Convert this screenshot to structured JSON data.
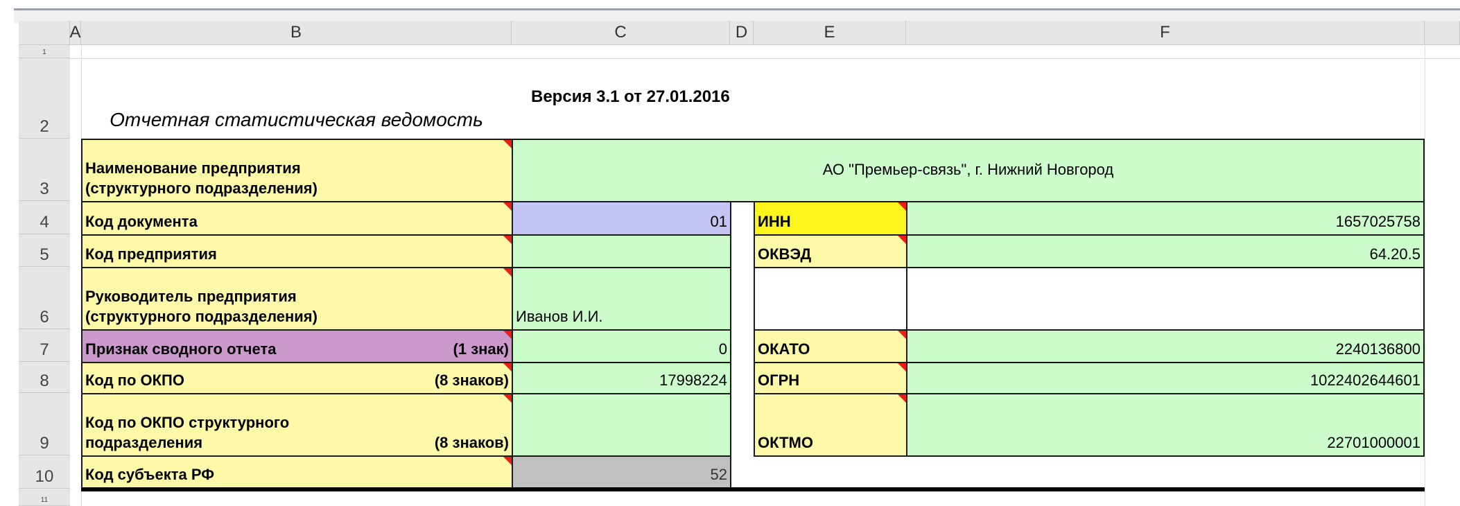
{
  "columns": [
    "A",
    "B",
    "C",
    "D",
    "E",
    "F"
  ],
  "rows": [
    "1",
    "2",
    "3",
    "4",
    "5",
    "6",
    "7",
    "8",
    "9",
    "10",
    "11"
  ],
  "title": "Отчетная  статистическая ведомость",
  "version": "Версия 3.1 от 27.01.2016",
  "fields": {
    "name_label": "Наименование предприятия (структурного подразделения)",
    "name_value": "АО \"Премьер-связь\", г. Нижний Новгород",
    "doc_code_label": "Код документа",
    "doc_code_value": "01",
    "ent_code_label": "Код предприятия",
    "ent_code_value": "",
    "head_label": "Руководитель предприятия (структурного подразделения)",
    "head_value": "Иванов И.И.",
    "summary_label": "Признак сводного отчета",
    "summary_hint": "(1 знак)",
    "summary_value": "0",
    "okpo_label": "Код по ОКПО",
    "okpo_hint": "(8 знаков)",
    "okpo_value": "17998224",
    "okpo_sub_label1": "Код по ОКПО  структурного",
    "okpo_sub_label2": "подразделения",
    "okpo_sub_hint": "(8 знаков)",
    "okpo_sub_value": "",
    "region_label": "Код субъекта РФ",
    "region_value": "52",
    "inn_label": "ИНН",
    "inn_value": "1657025758",
    "okved_label": "ОКВЭД",
    "okved_value": "64.20.5",
    "okato_label": "ОКАТО",
    "okato_value": "2240136800",
    "ogrn_label": "ОГРН",
    "ogrn_value": "1022402644601",
    "oktmo_label": "ОКТМО",
    "oktmo_value": "22701000001"
  },
  "colors": {
    "label": "#fdf9a8",
    "value": "#ccfccc",
    "doc_code": "#c5c5f5",
    "summary": "#cc99cc",
    "region": "#c0c0c0",
    "inn": "#fbf51c",
    "comment_marker": "#e8201a"
  }
}
